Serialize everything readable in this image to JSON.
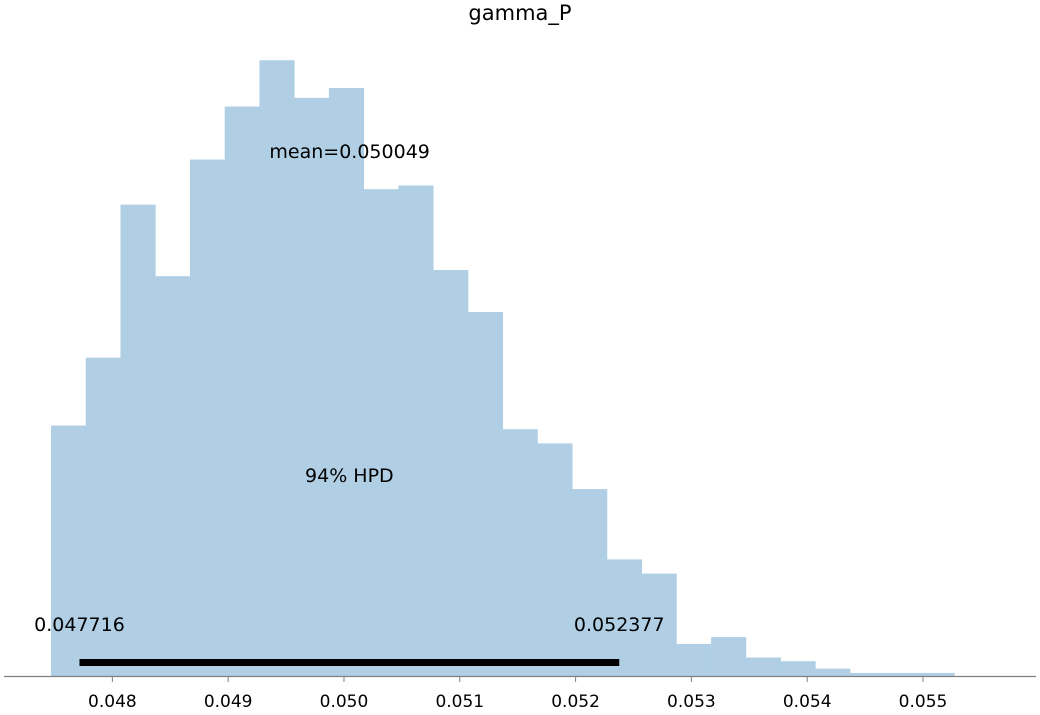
{
  "chart_data": {
    "type": "bar",
    "title": "gamma_P",
    "xlabel": "",
    "ylabel": "",
    "xlim": [
      0.04747,
      0.05557
    ],
    "ylim": [
      0,
      100
    ],
    "bar_color": "#b0cfe4",
    "bins": [
      {
        "x0": 0.04747,
        "x1": 0.04777,
        "value": 40.6
      },
      {
        "x0": 0.04777,
        "x1": 0.04807,
        "value": 51.6
      },
      {
        "x0": 0.04807,
        "x1": 0.04837,
        "value": 76.4
      },
      {
        "x0": 0.04837,
        "x1": 0.04867,
        "value": 64.8
      },
      {
        "x0": 0.04867,
        "x1": 0.04897,
        "value": 83.7
      },
      {
        "x0": 0.04897,
        "x1": 0.04927,
        "value": 92.3
      },
      {
        "x0": 0.04927,
        "x1": 0.04957,
        "value": 99.8
      },
      {
        "x0": 0.04957,
        "x1": 0.04987,
        "value": 93.7
      },
      {
        "x0": 0.04987,
        "x1": 0.05017,
        "value": 95.3
      },
      {
        "x0": 0.05017,
        "x1": 0.05047,
        "value": 78.9
      },
      {
        "x0": 0.05047,
        "x1": 0.05077,
        "value": 79.5
      },
      {
        "x0": 0.05077,
        "x1": 0.05107,
        "value": 65.8
      },
      {
        "x0": 0.05107,
        "x1": 0.05137,
        "value": 59.0
      },
      {
        "x0": 0.05137,
        "x1": 0.05167,
        "value": 40.0
      },
      {
        "x0": 0.05167,
        "x1": 0.05197,
        "value": 37.7
      },
      {
        "x0": 0.05197,
        "x1": 0.05227,
        "value": 30.3
      },
      {
        "x0": 0.05227,
        "x1": 0.05257,
        "value": 18.9
      },
      {
        "x0": 0.05257,
        "x1": 0.05287,
        "value": 16.6
      },
      {
        "x0": 0.05287,
        "x1": 0.05317,
        "value": 5.2
      },
      {
        "x0": 0.05317,
        "x1": 0.05347,
        "value": 6.3
      },
      {
        "x0": 0.05347,
        "x1": 0.05377,
        "value": 3.0
      },
      {
        "x0": 0.05377,
        "x1": 0.05407,
        "value": 2.4
      },
      {
        "x0": 0.05407,
        "x1": 0.05437,
        "value": 1.2
      },
      {
        "x0": 0.05437,
        "x1": 0.05467,
        "value": 0.5
      },
      {
        "x0": 0.05467,
        "x1": 0.05497,
        "value": 0.5
      },
      {
        "x0": 0.05497,
        "x1": 0.05527,
        "value": 0.5
      }
    ],
    "x_ticks": [
      {
        "value": 0.048,
        "label": "0.048"
      },
      {
        "value": 0.049,
        "label": "0.049"
      },
      {
        "value": 0.05,
        "label": "0.050"
      },
      {
        "value": 0.051,
        "label": "0.051"
      },
      {
        "value": 0.052,
        "label": "0.052"
      },
      {
        "value": 0.053,
        "label": "0.053"
      },
      {
        "value": 0.054,
        "label": "0.054"
      },
      {
        "value": 0.055,
        "label": "0.055"
      }
    ],
    "mean": {
      "value": 0.050049,
      "label": "mean=0.050049"
    },
    "hpd": {
      "label": "94% HPD",
      "low": 0.047716,
      "high": 0.052377,
      "low_label": "0.047716",
      "high_label": "0.052377",
      "color": "#000000"
    },
    "axis_color": "#808080"
  }
}
